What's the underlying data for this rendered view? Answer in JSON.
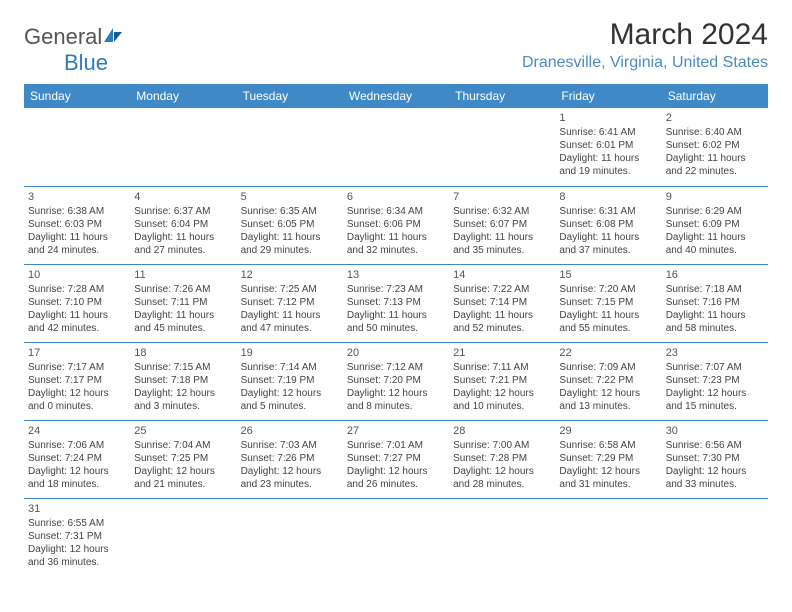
{
  "logo": {
    "text1": "General",
    "text2": "Blue"
  },
  "title": "March 2024",
  "location": "Dranesville, Virginia, United States",
  "colors": {
    "header_bg": "#3e89c6",
    "header_fg": "#ffffff",
    "border": "#3e89c6",
    "location_fg": "#4a8bc4",
    "body_fg": "#444444",
    "title_fg": "#333333",
    "logo_gray": "#555555",
    "logo_blue": "#2b7bbf",
    "bg": "#ffffff"
  },
  "typography": {
    "title_fontsize": 30,
    "location_fontsize": 16,
    "th_fontsize": 12,
    "td_fontsize": 10,
    "daynum_fontsize": 11,
    "logo_fontsize": 22
  },
  "day_headers": [
    "Sunday",
    "Monday",
    "Tuesday",
    "Wednesday",
    "Thursday",
    "Friday",
    "Saturday"
  ],
  "weeks": [
    [
      null,
      null,
      null,
      null,
      null,
      {
        "n": "1",
        "sr": "Sunrise: 6:41 AM",
        "ss": "Sunset: 6:01 PM",
        "d1": "Daylight: 11 hours",
        "d2": "and 19 minutes."
      },
      {
        "n": "2",
        "sr": "Sunrise: 6:40 AM",
        "ss": "Sunset: 6:02 PM",
        "d1": "Daylight: 11 hours",
        "d2": "and 22 minutes."
      }
    ],
    [
      {
        "n": "3",
        "sr": "Sunrise: 6:38 AM",
        "ss": "Sunset: 6:03 PM",
        "d1": "Daylight: 11 hours",
        "d2": "and 24 minutes."
      },
      {
        "n": "4",
        "sr": "Sunrise: 6:37 AM",
        "ss": "Sunset: 6:04 PM",
        "d1": "Daylight: 11 hours",
        "d2": "and 27 minutes."
      },
      {
        "n": "5",
        "sr": "Sunrise: 6:35 AM",
        "ss": "Sunset: 6:05 PM",
        "d1": "Daylight: 11 hours",
        "d2": "and 29 minutes."
      },
      {
        "n": "6",
        "sr": "Sunrise: 6:34 AM",
        "ss": "Sunset: 6:06 PM",
        "d1": "Daylight: 11 hours",
        "d2": "and 32 minutes."
      },
      {
        "n": "7",
        "sr": "Sunrise: 6:32 AM",
        "ss": "Sunset: 6:07 PM",
        "d1": "Daylight: 11 hours",
        "d2": "and 35 minutes."
      },
      {
        "n": "8",
        "sr": "Sunrise: 6:31 AM",
        "ss": "Sunset: 6:08 PM",
        "d1": "Daylight: 11 hours",
        "d2": "and 37 minutes."
      },
      {
        "n": "9",
        "sr": "Sunrise: 6:29 AM",
        "ss": "Sunset: 6:09 PM",
        "d1": "Daylight: 11 hours",
        "d2": "and 40 minutes."
      }
    ],
    [
      {
        "n": "10",
        "sr": "Sunrise: 7:28 AM",
        "ss": "Sunset: 7:10 PM",
        "d1": "Daylight: 11 hours",
        "d2": "and 42 minutes."
      },
      {
        "n": "11",
        "sr": "Sunrise: 7:26 AM",
        "ss": "Sunset: 7:11 PM",
        "d1": "Daylight: 11 hours",
        "d2": "and 45 minutes."
      },
      {
        "n": "12",
        "sr": "Sunrise: 7:25 AM",
        "ss": "Sunset: 7:12 PM",
        "d1": "Daylight: 11 hours",
        "d2": "and 47 minutes."
      },
      {
        "n": "13",
        "sr": "Sunrise: 7:23 AM",
        "ss": "Sunset: 7:13 PM",
        "d1": "Daylight: 11 hours",
        "d2": "and 50 minutes."
      },
      {
        "n": "14",
        "sr": "Sunrise: 7:22 AM",
        "ss": "Sunset: 7:14 PM",
        "d1": "Daylight: 11 hours",
        "d2": "and 52 minutes."
      },
      {
        "n": "15",
        "sr": "Sunrise: 7:20 AM",
        "ss": "Sunset: 7:15 PM",
        "d1": "Daylight: 11 hours",
        "d2": "and 55 minutes."
      },
      {
        "n": "16",
        "sr": "Sunrise: 7:18 AM",
        "ss": "Sunset: 7:16 PM",
        "d1": "Daylight: 11 hours",
        "d2": "and 58 minutes."
      }
    ],
    [
      {
        "n": "17",
        "sr": "Sunrise: 7:17 AM",
        "ss": "Sunset: 7:17 PM",
        "d1": "Daylight: 12 hours",
        "d2": "and 0 minutes."
      },
      {
        "n": "18",
        "sr": "Sunrise: 7:15 AM",
        "ss": "Sunset: 7:18 PM",
        "d1": "Daylight: 12 hours",
        "d2": "and 3 minutes."
      },
      {
        "n": "19",
        "sr": "Sunrise: 7:14 AM",
        "ss": "Sunset: 7:19 PM",
        "d1": "Daylight: 12 hours",
        "d2": "and 5 minutes."
      },
      {
        "n": "20",
        "sr": "Sunrise: 7:12 AM",
        "ss": "Sunset: 7:20 PM",
        "d1": "Daylight: 12 hours",
        "d2": "and 8 minutes."
      },
      {
        "n": "21",
        "sr": "Sunrise: 7:11 AM",
        "ss": "Sunset: 7:21 PM",
        "d1": "Daylight: 12 hours",
        "d2": "and 10 minutes."
      },
      {
        "n": "22",
        "sr": "Sunrise: 7:09 AM",
        "ss": "Sunset: 7:22 PM",
        "d1": "Daylight: 12 hours",
        "d2": "and 13 minutes."
      },
      {
        "n": "23",
        "sr": "Sunrise: 7:07 AM",
        "ss": "Sunset: 7:23 PM",
        "d1": "Daylight: 12 hours",
        "d2": "and 15 minutes."
      }
    ],
    [
      {
        "n": "24",
        "sr": "Sunrise: 7:06 AM",
        "ss": "Sunset: 7:24 PM",
        "d1": "Daylight: 12 hours",
        "d2": "and 18 minutes."
      },
      {
        "n": "25",
        "sr": "Sunrise: 7:04 AM",
        "ss": "Sunset: 7:25 PM",
        "d1": "Daylight: 12 hours",
        "d2": "and 21 minutes."
      },
      {
        "n": "26",
        "sr": "Sunrise: 7:03 AM",
        "ss": "Sunset: 7:26 PM",
        "d1": "Daylight: 12 hours",
        "d2": "and 23 minutes."
      },
      {
        "n": "27",
        "sr": "Sunrise: 7:01 AM",
        "ss": "Sunset: 7:27 PM",
        "d1": "Daylight: 12 hours",
        "d2": "and 26 minutes."
      },
      {
        "n": "28",
        "sr": "Sunrise: 7:00 AM",
        "ss": "Sunset: 7:28 PM",
        "d1": "Daylight: 12 hours",
        "d2": "and 28 minutes."
      },
      {
        "n": "29",
        "sr": "Sunrise: 6:58 AM",
        "ss": "Sunset: 7:29 PM",
        "d1": "Daylight: 12 hours",
        "d2": "and 31 minutes."
      },
      {
        "n": "30",
        "sr": "Sunrise: 6:56 AM",
        "ss": "Sunset: 7:30 PM",
        "d1": "Daylight: 12 hours",
        "d2": "and 33 minutes."
      }
    ],
    [
      {
        "n": "31",
        "sr": "Sunrise: 6:55 AM",
        "ss": "Sunset: 7:31 PM",
        "d1": "Daylight: 12 hours",
        "d2": "and 36 minutes."
      },
      null,
      null,
      null,
      null,
      null,
      null
    ]
  ]
}
